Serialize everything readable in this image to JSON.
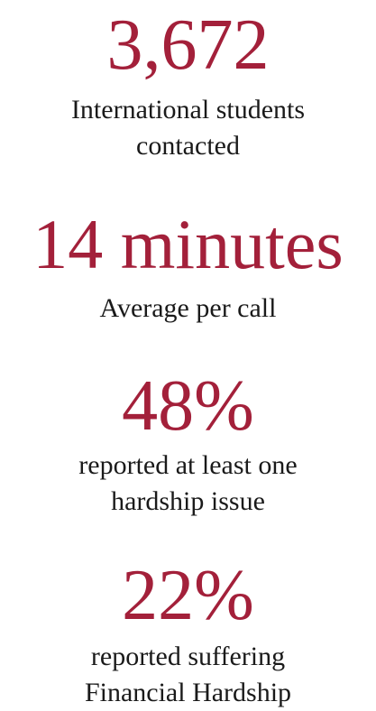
{
  "stats": [
    {
      "figure": "3,672",
      "caption_lines": [
        "International students",
        "contacted"
      ]
    },
    {
      "figure": "14 minutes",
      "caption_lines": [
        "Average per call"
      ]
    },
    {
      "figure": "48%",
      "caption_lines": [
        "reported at least one",
        "hardship issue"
      ]
    },
    {
      "figure": "22%",
      "caption_lines": [
        "reported suffering",
        "Financial Hardship"
      ]
    }
  ],
  "colors": {
    "figure": "#a3203a",
    "caption": "#1a1a1a",
    "background": "#ffffff"
  }
}
